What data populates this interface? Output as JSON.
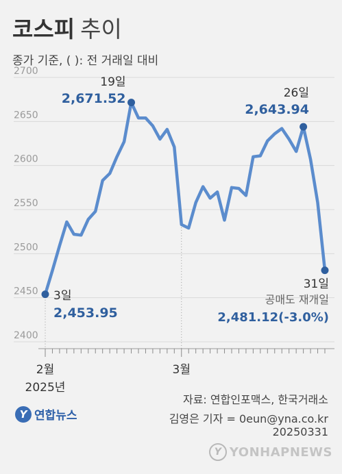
{
  "header": {
    "title_main": "코스피",
    "title_sub": "추이",
    "subtitle": "종가 기준, ( ): 전 거래일 대비"
  },
  "chart_data": {
    "type": "line",
    "ylim": [
      2400,
      2700
    ],
    "y_ticks": [
      "2700",
      "2650",
      "2600",
      "2550",
      "2500",
      "2450",
      "2400"
    ],
    "x_tick_labels": [
      "2월",
      "3월"
    ],
    "year_label": "2025년",
    "series": [
      {
        "color": "#5b8ccd",
        "values": [
          2453.95,
          2481.0,
          2509.0,
          2536.0,
          2522.0,
          2521.0,
          2539.0,
          2548.0,
          2583.0,
          2591.0,
          2610.0,
          2627.0,
          2671.52,
          2654.0,
          2654.0,
          2645.0,
          2630.0,
          2641.0,
          2621.0,
          2533.0,
          2529.0,
          2558.0,
          2576.0,
          2563.0,
          2570.0,
          2538.0,
          2575.0,
          2574.0,
          2566.0,
          2610.0,
          2611.0,
          2628.0,
          2636.0,
          2642.0,
          2630.0,
          2616.0,
          2643.94,
          2607.0,
          2558.0,
          2481.12
        ]
      }
    ],
    "annotations": [
      {
        "day": "3일",
        "value": "2,453.95"
      },
      {
        "day": "19일",
        "value": "2,671.52"
      },
      {
        "day": "26일",
        "value": "2,643.94"
      },
      {
        "day": "31일",
        "note": "공매도 재개일",
        "value": "2,481.12(-3.0%)"
      }
    ]
  },
  "footer": {
    "source": "자료: 연합인포맥스, 한국거래소",
    "reporter": "김영은 기자 = 0eun@yna.co.kr",
    "date": "20250331",
    "logo_text": "연합뉴스",
    "watermark": "YONHAPNEWS"
  },
  "colors": {
    "line": "#5b8ccd",
    "marker": "#2f5f9e",
    "value_label": "#2f5f9e",
    "background": "#f2f2f2"
  }
}
